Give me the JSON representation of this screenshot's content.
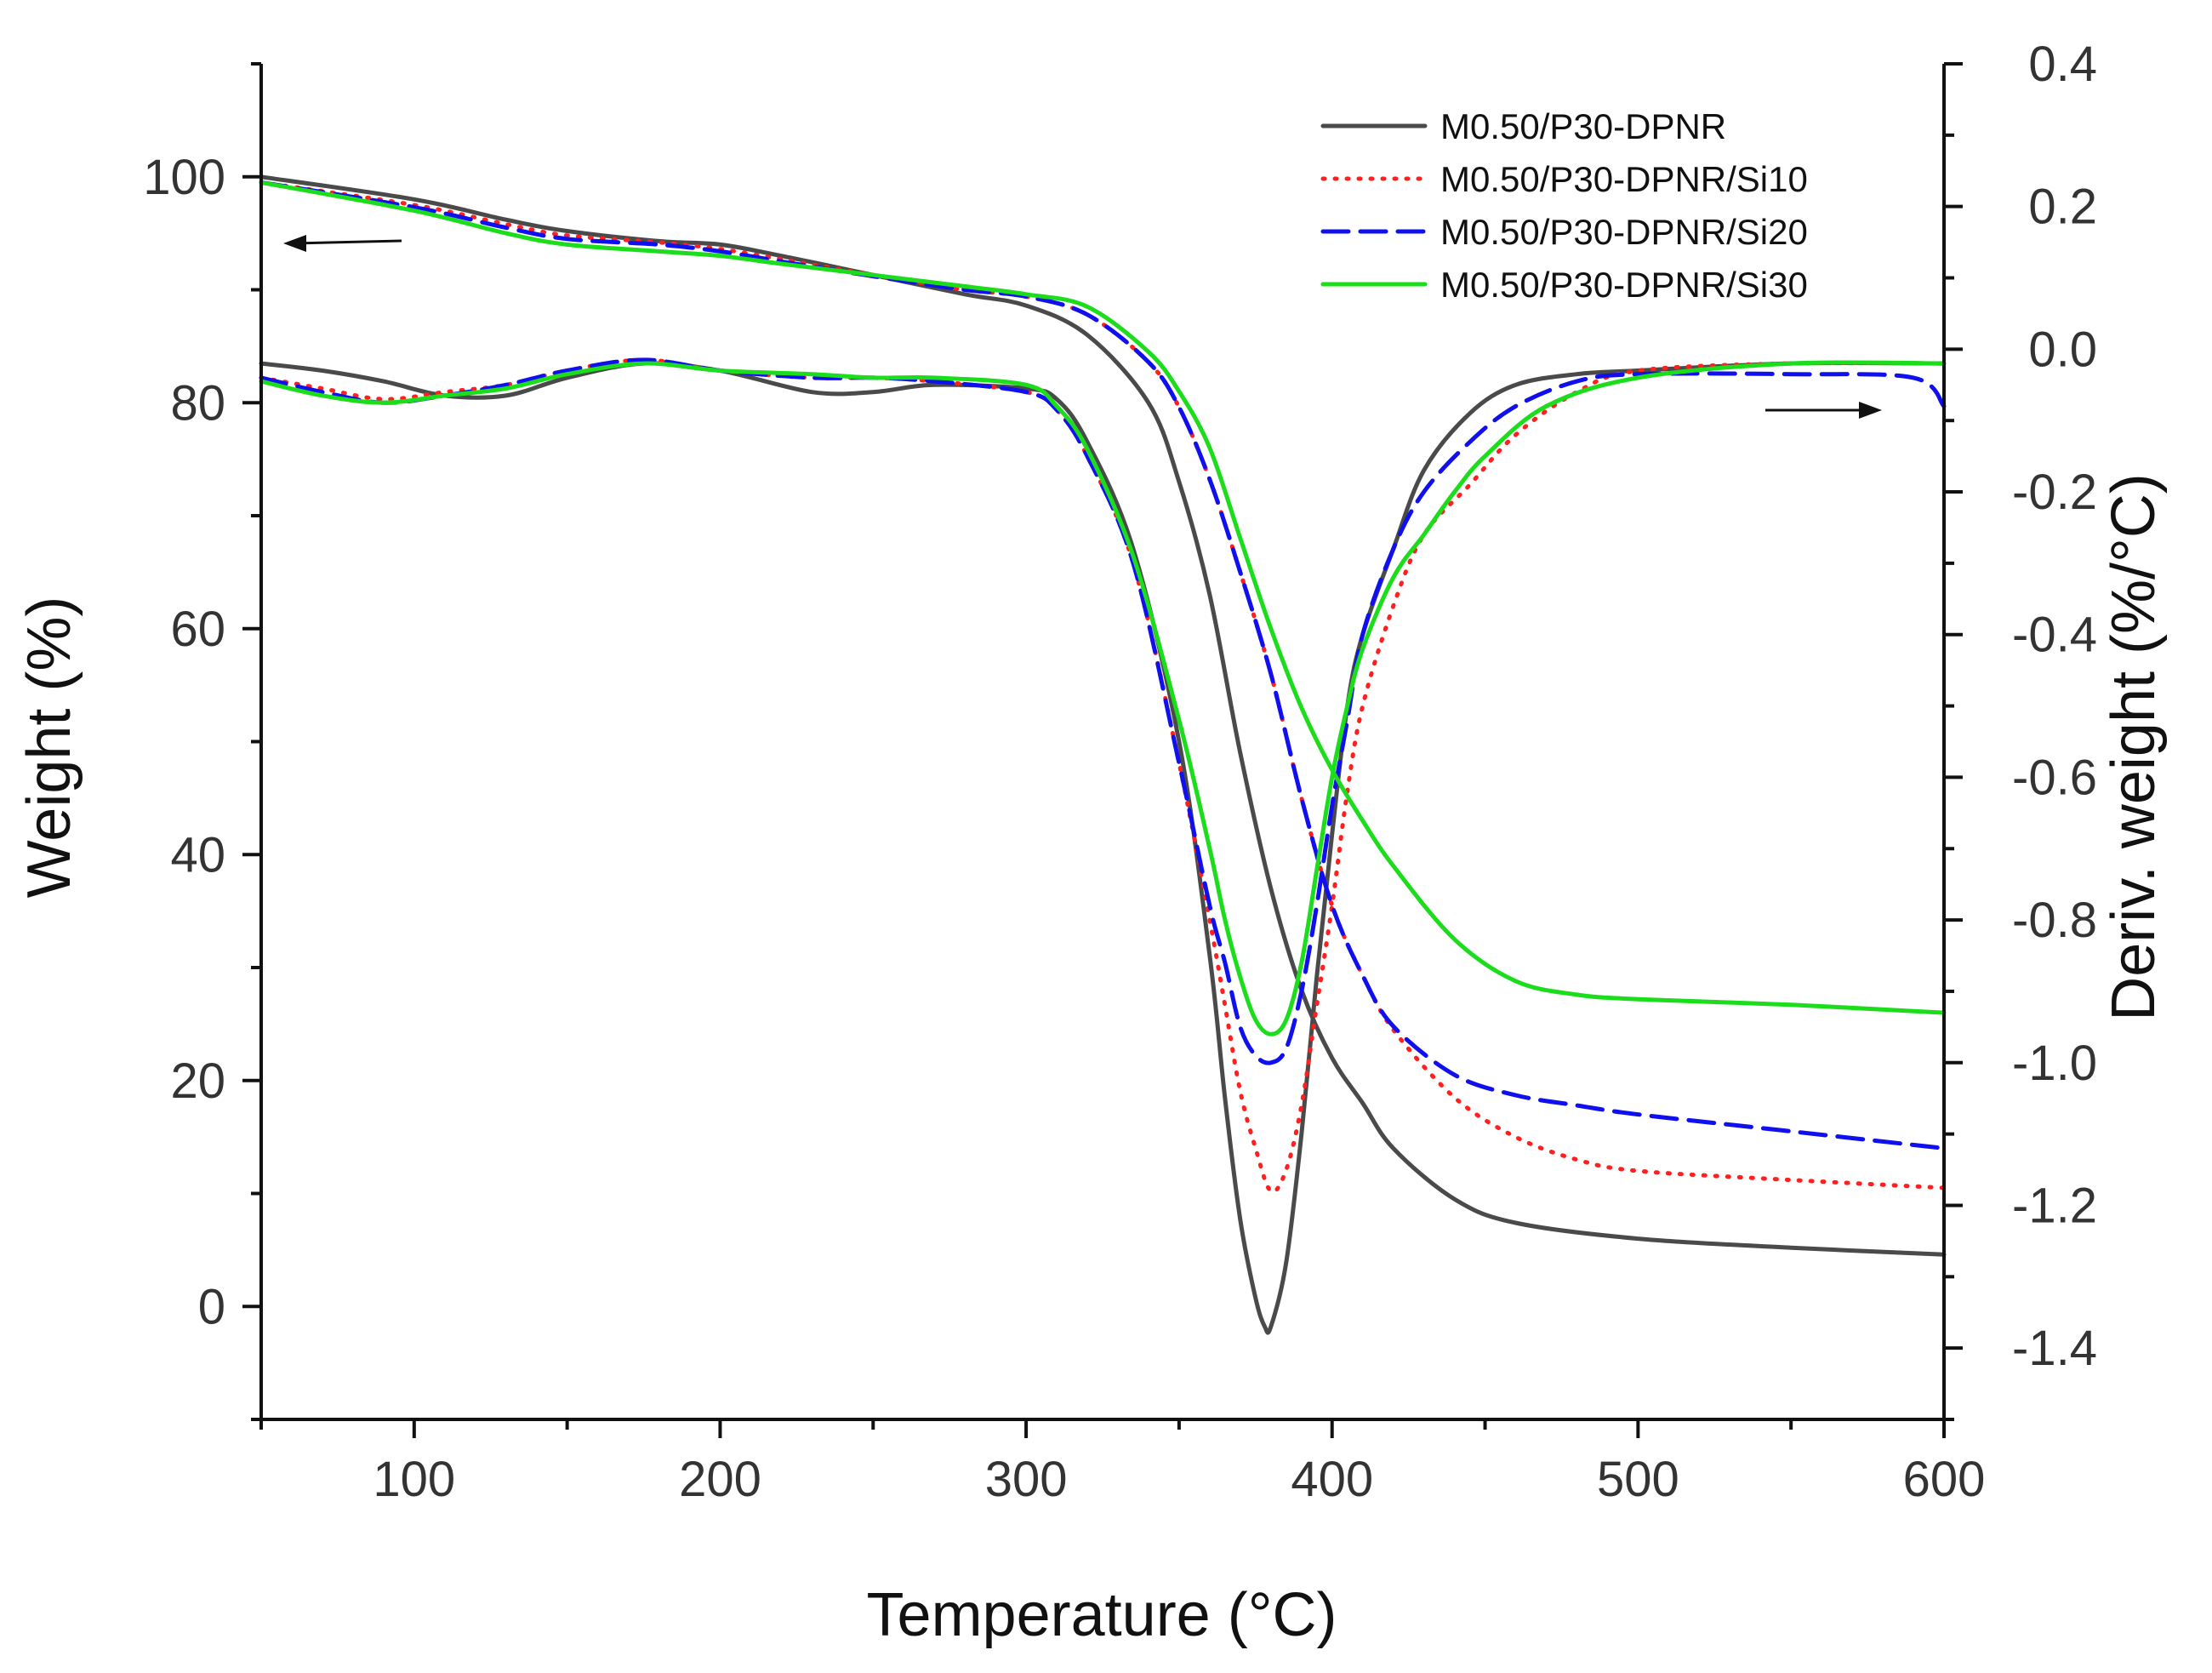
{
  "chart_data": {
    "type": "line",
    "title": "",
    "xlabel": "Temperature (°C)",
    "ylabel_left": "Weight (%)",
    "ylabel_right": "Deriv. weight (%/°C)",
    "xlim": [
      50,
      600
    ],
    "ylim_left": [
      -10,
      110
    ],
    "ylim_right": [
      -1.5,
      0.4
    ],
    "x_ticks": [
      100,
      200,
      300,
      400,
      500,
      600
    ],
    "y_left_ticks": [
      0,
      20,
      40,
      60,
      80,
      100
    ],
    "y_right_ticks": [
      "0.4",
      "0.2",
      "0.0",
      "-0.2",
      "-0.4",
      "-0.6",
      "-0.8",
      "-1.0",
      "-1.2",
      "-1.4"
    ],
    "legend_position": "top-right",
    "series": [
      {
        "name": "M0.50/P30-DPNR",
        "color": "#4a4a4a",
        "style": "solid",
        "weight": {
          "x": [
            50,
            100,
            130,
            150,
            180,
            200,
            220,
            250,
            280,
            300,
            320,
            340,
            350,
            360,
            370,
            380,
            390,
            400,
            410,
            420,
            440,
            460,
            500,
            550,
            600
          ],
          "y": [
            100,
            98,
            96.2,
            95.2,
            94.3,
            94,
            93,
            91.3,
            89.6,
            88.6,
            86,
            80,
            73,
            63,
            49,
            37,
            28,
            22,
            18,
            14,
            9.5,
            7.4,
            6,
            5.2,
            4.6
          ]
        },
        "deriv": {
          "x": [
            50,
            70,
            90,
            110,
            130,
            150,
            175,
            200,
            230,
            250,
            270,
            300,
            310,
            320,
            335,
            350,
            360,
            365,
            370,
            375,
            378,
            380,
            385,
            390,
            395,
            400,
            405,
            410,
            420,
            430,
            445,
            460,
            480,
            500,
            550,
            600
          ],
          "y": [
            -0.02,
            -0.03,
            -0.045,
            -0.065,
            -0.065,
            -0.04,
            -0.02,
            -0.03,
            -0.06,
            -0.06,
            -0.05,
            -0.055,
            -0.07,
            -0.13,
            -0.28,
            -0.55,
            -0.85,
            -1.05,
            -1.22,
            -1.33,
            -1.37,
            -1.37,
            -1.28,
            -1.1,
            -0.88,
            -0.68,
            -0.5,
            -0.4,
            -0.28,
            -0.17,
            -0.09,
            -0.05,
            -0.035,
            -0.03,
            -0.02,
            -0.02
          ]
        }
      },
      {
        "name": "M0.50/P30-DPNR/Si10",
        "color": "#ff1f1f",
        "style": "dotted",
        "weight": {
          "x": [
            50,
            100,
            130,
            150,
            180,
            200,
            220,
            250,
            280,
            300,
            320,
            340,
            350,
            360,
            370,
            380,
            390,
            400,
            410,
            420,
            440,
            460,
            480,
            500,
            550,
            600
          ],
          "y": [
            99.5,
            97.5,
            95.8,
            94.8,
            94.2,
            93.6,
            92.7,
            91.3,
            90,
            89.4,
            87.8,
            83.6,
            79.6,
            73.2,
            65,
            56,
            45,
            35.5,
            29.3,
            24.5,
            18.5,
            15,
            13,
            12,
            11.2,
            10.5
          ]
        },
        "deriv": {
          "x": [
            50,
            70,
            90,
            110,
            130,
            150,
            175,
            200,
            230,
            250,
            270,
            300,
            310,
            320,
            335,
            350,
            360,
            365,
            370,
            375,
            380,
            385,
            390,
            395,
            400,
            405,
            410,
            420,
            430,
            445,
            460,
            480,
            500,
            550,
            600
          ],
          "y": [
            -0.04,
            -0.055,
            -0.07,
            -0.06,
            -0.05,
            -0.03,
            -0.015,
            -0.03,
            -0.04,
            -0.04,
            -0.045,
            -0.06,
            -0.085,
            -0.15,
            -0.3,
            -0.58,
            -0.8,
            -0.92,
            -1.04,
            -1.12,
            -1.18,
            -1.15,
            -1.06,
            -0.92,
            -0.78,
            -0.62,
            -0.5,
            -0.36,
            -0.26,
            -0.19,
            -0.12,
            -0.06,
            -0.03,
            -0.02,
            -0.02
          ]
        }
      },
      {
        "name": "M0.50/P30-DPNR/Si20",
        "color": "#1010ee",
        "style": "dashed",
        "weight": {
          "x": [
            50,
            100,
            130,
            150,
            180,
            200,
            220,
            250,
            280,
            300,
            320,
            340,
            350,
            360,
            370,
            380,
            390,
            400,
            410,
            420,
            440,
            460,
            480,
            500,
            550,
            600
          ],
          "y": [
            99.5,
            97.3,
            95.5,
            94.5,
            94,
            93.4,
            92.5,
            91.2,
            90,
            89.4,
            87.8,
            83.6,
            79.6,
            73.2,
            65,
            56,
            45,
            35.5,
            29.3,
            24.8,
            20.5,
            18.7,
            17.8,
            17,
            15.5,
            14
          ]
        },
        "deriv": {
          "x": [
            50,
            70,
            90,
            110,
            130,
            150,
            175,
            200,
            230,
            250,
            270,
            300,
            310,
            320,
            335,
            350,
            360,
            365,
            370,
            375,
            380,
            385,
            390,
            395,
            400,
            405,
            410,
            420,
            430,
            445,
            460,
            480,
            500,
            550,
            590,
            600
          ],
          "y": [
            -0.04,
            -0.06,
            -0.075,
            -0.065,
            -0.05,
            -0.03,
            -0.015,
            -0.03,
            -0.04,
            -0.04,
            -0.045,
            -0.06,
            -0.085,
            -0.15,
            -0.3,
            -0.58,
            -0.78,
            -0.86,
            -0.95,
            -0.99,
            -1.0,
            -0.98,
            -0.9,
            -0.78,
            -0.64,
            -0.52,
            -0.4,
            -0.28,
            -0.2,
            -0.13,
            -0.08,
            -0.045,
            -0.035,
            -0.035,
            -0.04,
            -0.08
          ]
        }
      },
      {
        "name": "M0.50/P30-DPNR/Si30",
        "color": "#1cdd1c",
        "style": "solid",
        "weight": {
          "x": [
            50,
            100,
            130,
            150,
            180,
            200,
            220,
            250,
            280,
            300,
            320,
            340,
            350,
            360,
            370,
            380,
            390,
            400,
            410,
            420,
            440,
            460,
            480,
            500,
            550,
            600
          ],
          "y": [
            99.5,
            97,
            95,
            94,
            93.4,
            93,
            92.3,
            91.3,
            90.3,
            89.6,
            88.5,
            84.5,
            81,
            76,
            68,
            60,
            53,
            47.5,
            43,
            39,
            32.5,
            28.8,
            27.6,
            27.2,
            26.7,
            26
          ]
        },
        "deriv": {
          "x": [
            50,
            70,
            90,
            110,
            130,
            150,
            175,
            200,
            230,
            250,
            270,
            300,
            310,
            320,
            335,
            350,
            360,
            365,
            370,
            375,
            380,
            385,
            390,
            395,
            400,
            405,
            410,
            420,
            430,
            440,
            450,
            470,
            500,
            550,
            600
          ],
          "y": [
            -0.045,
            -0.065,
            -0.075,
            -0.065,
            -0.055,
            -0.035,
            -0.02,
            -0.03,
            -0.035,
            -0.04,
            -0.04,
            -0.05,
            -0.08,
            -0.14,
            -0.29,
            -0.52,
            -0.7,
            -0.8,
            -0.88,
            -0.94,
            -0.96,
            -0.94,
            -0.86,
            -0.73,
            -0.6,
            -0.5,
            -0.42,
            -0.32,
            -0.26,
            -0.2,
            -0.15,
            -0.08,
            -0.04,
            -0.02,
            -0.02
          ]
        }
      }
    ],
    "annotations": [
      "left-arrow: weight curves read on left axis",
      "right-arrow: derivative curves read on right axis"
    ]
  }
}
